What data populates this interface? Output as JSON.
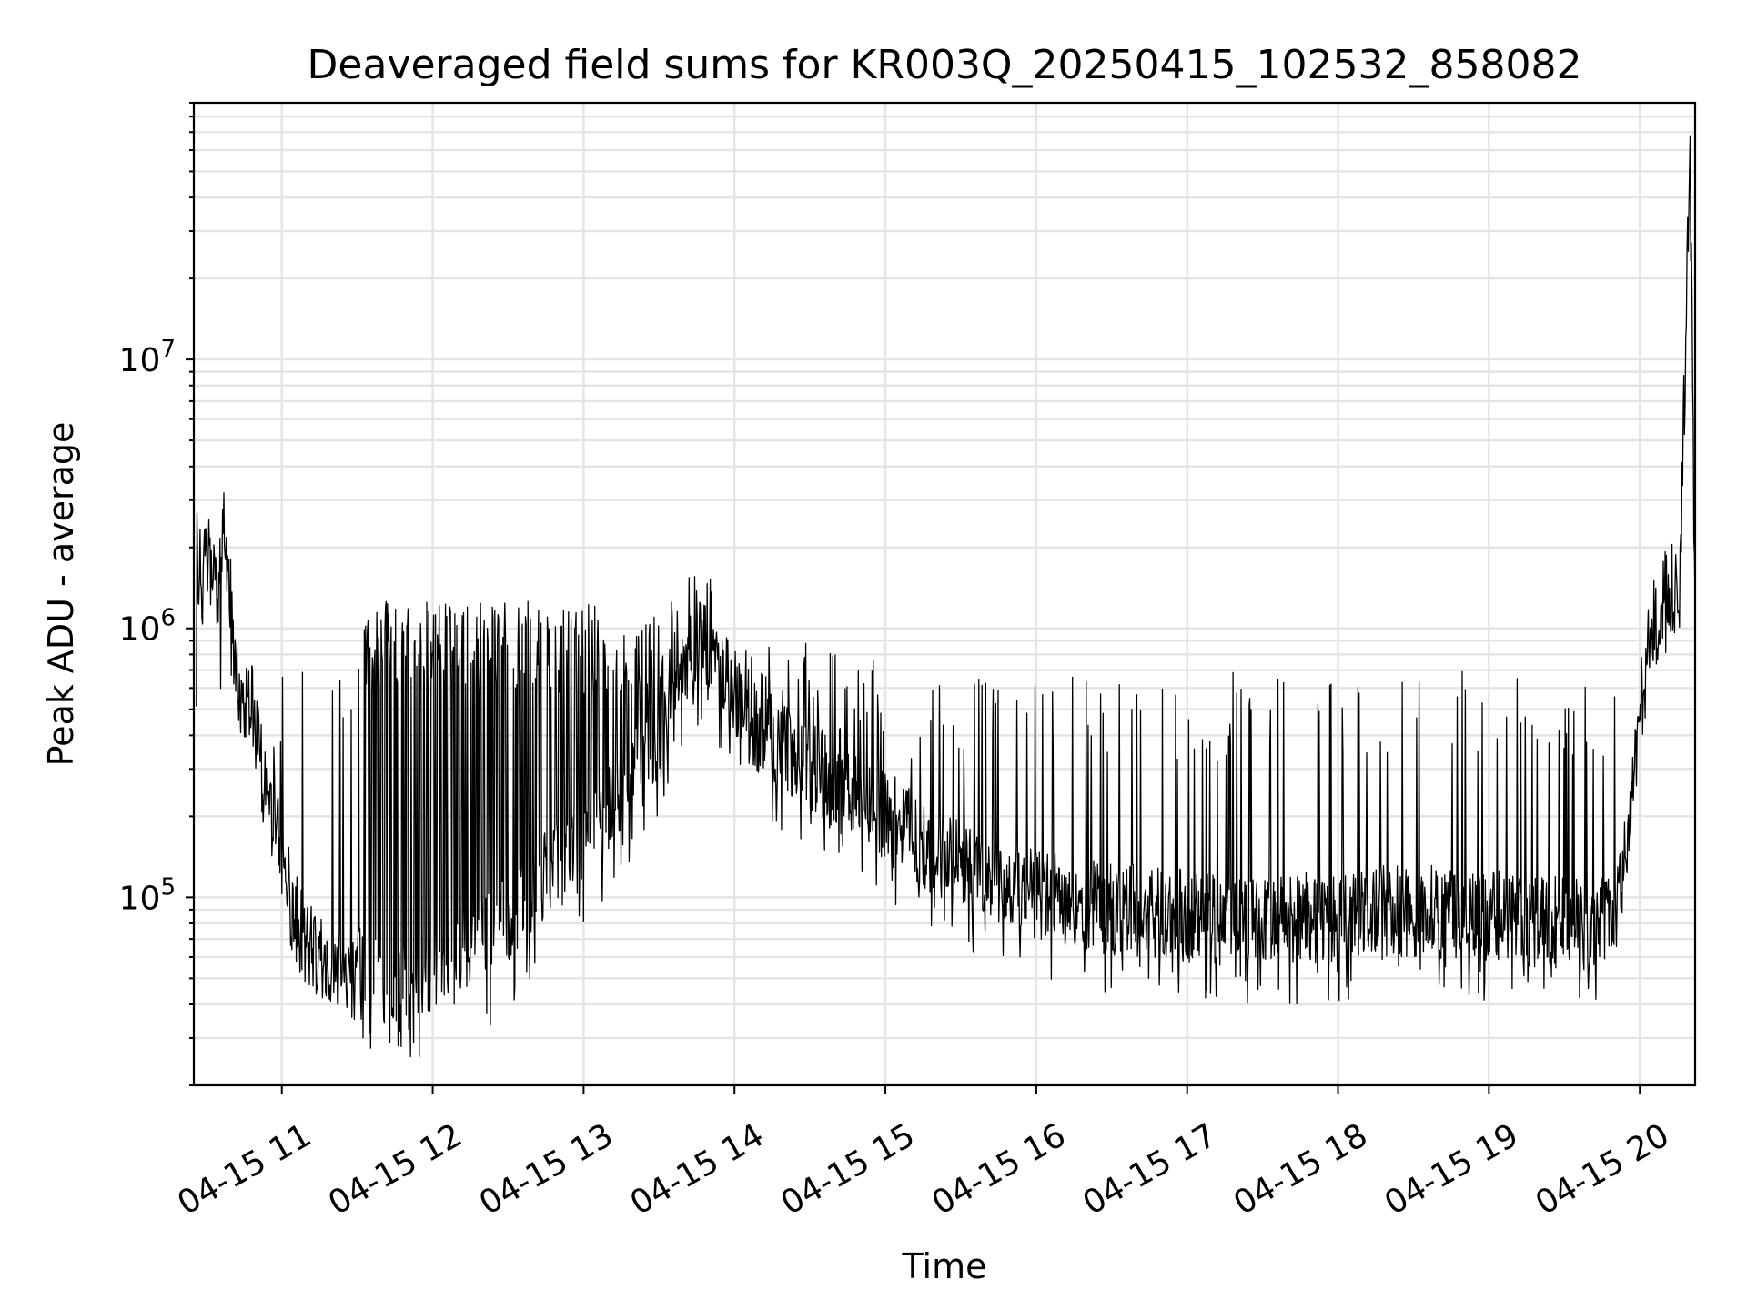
{
  "chart_data": {
    "type": "line",
    "title": "Deaveraged field sums for KR003Q_20250415_102532_858082",
    "xlabel": "Time",
    "ylabel": "Peak ADU - average",
    "x_scale": "time",
    "y_scale": "log",
    "grid": "major and minor",
    "legend": "none",
    "xlim": [
      "2025-04-15 10:25",
      "2025-04-15 20:22"
    ],
    "ylim": [
      20000,
      90000000
    ],
    "x_tick_labels": [
      "04-15 11",
      "04-15 12",
      "04-15 13",
      "04-15 14",
      "04-15 15",
      "04-15 16",
      "04-15 17",
      "04-15 18",
      "04-15 19",
      "04-15 20"
    ],
    "x_tick_times": [
      "2025-04-15 11:00",
      "2025-04-15 12:00",
      "2025-04-15 13:00",
      "2025-04-15 14:00",
      "2025-04-15 15:00",
      "2025-04-15 16:00",
      "2025-04-15 17:00",
      "2025-04-15 18:00",
      "2025-04-15 19:00",
      "2025-04-15 20:00"
    ],
    "y_ticks": [
      {
        "value": 100000,
        "base": "10",
        "exp": "5"
      },
      {
        "value": 1000000,
        "base": "10",
        "exp": "6"
      },
      {
        "value": 10000000,
        "base": "10",
        "exp": "7"
      }
    ],
    "series": [
      {
        "color": "#000000",
        "points": [
          {
            "t": "2025-04-15 10:26",
            "y": 2000000
          },
          {
            "t": "2025-04-15 10:28",
            "y": 1500000
          },
          {
            "t": "2025-04-15 10:31",
            "y": 1800000
          },
          {
            "t": "2025-04-15 10:34",
            "y": 1300000
          },
          {
            "t": "2025-04-15 10:37",
            "y": 2200000
          },
          {
            "t": "2025-04-15 10:39",
            "y": 1600000
          },
          {
            "t": "2025-04-15 10:42",
            "y": 600000
          },
          {
            "t": "2025-04-15 10:45",
            "y": 500000
          },
          {
            "t": "2025-04-15 10:48",
            "y": 550000
          },
          {
            "t": "2025-04-15 10:51",
            "y": 350000
          },
          {
            "t": "2025-04-15 10:54",
            "y": 220000
          },
          {
            "t": "2025-04-15 10:57",
            "y": 200000
          },
          {
            "t": "2025-04-15 11:00",
            "y": 150000
          },
          {
            "t": "2025-04-15 11:03",
            "y": 100000
          },
          {
            "t": "2025-04-15 11:06",
            "y": 80000
          },
          {
            "t": "2025-04-15 11:10",
            "y": 70000
          },
          {
            "t": "2025-04-15 11:15",
            "y": 60000
          },
          {
            "t": "2025-04-15 11:20",
            "y": 55000
          },
          {
            "t": "2025-04-15 11:30",
            "y": 52000
          },
          {
            "t": "2025-04-15 11:40",
            "y": 50000
          },
          {
            "t": "2025-04-15 11:50",
            "y": 52000
          },
          {
            "t": "2025-04-15 12:00",
            "y": 55000
          },
          {
            "t": "2025-04-15 12:15",
            "y": 60000
          },
          {
            "t": "2025-04-15 12:30",
            "y": 80000
          },
          {
            "t": "2025-04-15 12:45",
            "y": 120000
          },
          {
            "t": "2025-04-15 13:00",
            "y": 160000
          },
          {
            "t": "2025-04-15 13:15",
            "y": 250000
          },
          {
            "t": "2025-04-15 13:30",
            "y": 400000
          },
          {
            "t": "2025-04-15 13:45",
            "y": 900000
          },
          {
            "t": "2025-04-15 13:55",
            "y": 700000
          },
          {
            "t": "2025-04-15 14:10",
            "y": 400000
          },
          {
            "t": "2025-04-15 14:30",
            "y": 300000
          },
          {
            "t": "2025-04-15 15:00",
            "y": 200000
          },
          {
            "t": "2025-04-15 15:30",
            "y": 130000
          },
          {
            "t": "2025-04-15 16:00",
            "y": 100000
          },
          {
            "t": "2025-04-15 16:30",
            "y": 90000
          },
          {
            "t": "2025-04-15 17:00",
            "y": 85000
          },
          {
            "t": "2025-04-15 17:30",
            "y": 82000
          },
          {
            "t": "2025-04-15 18:00",
            "y": 85000
          },
          {
            "t": "2025-04-15 18:30",
            "y": 90000
          },
          {
            "t": "2025-04-15 19:00",
            "y": 85000
          },
          {
            "t": "2025-04-15 19:30",
            "y": 80000
          },
          {
            "t": "2025-04-15 19:50",
            "y": 80000
          },
          {
            "t": "2025-04-15 19:56",
            "y": 200000
          },
          {
            "t": "2025-04-15 20:00",
            "y": 500000
          },
          {
            "t": "2025-04-15 20:05",
            "y": 1000000
          },
          {
            "t": "2025-04-15 20:10",
            "y": 1300000
          },
          {
            "t": "2025-04-15 20:16",
            "y": 1500000
          },
          {
            "t": "2025-04-15 20:20",
            "y": 60000000
          },
          {
            "t": "2025-04-15 20:22",
            "y": 850000
          }
        ]
      }
    ]
  }
}
